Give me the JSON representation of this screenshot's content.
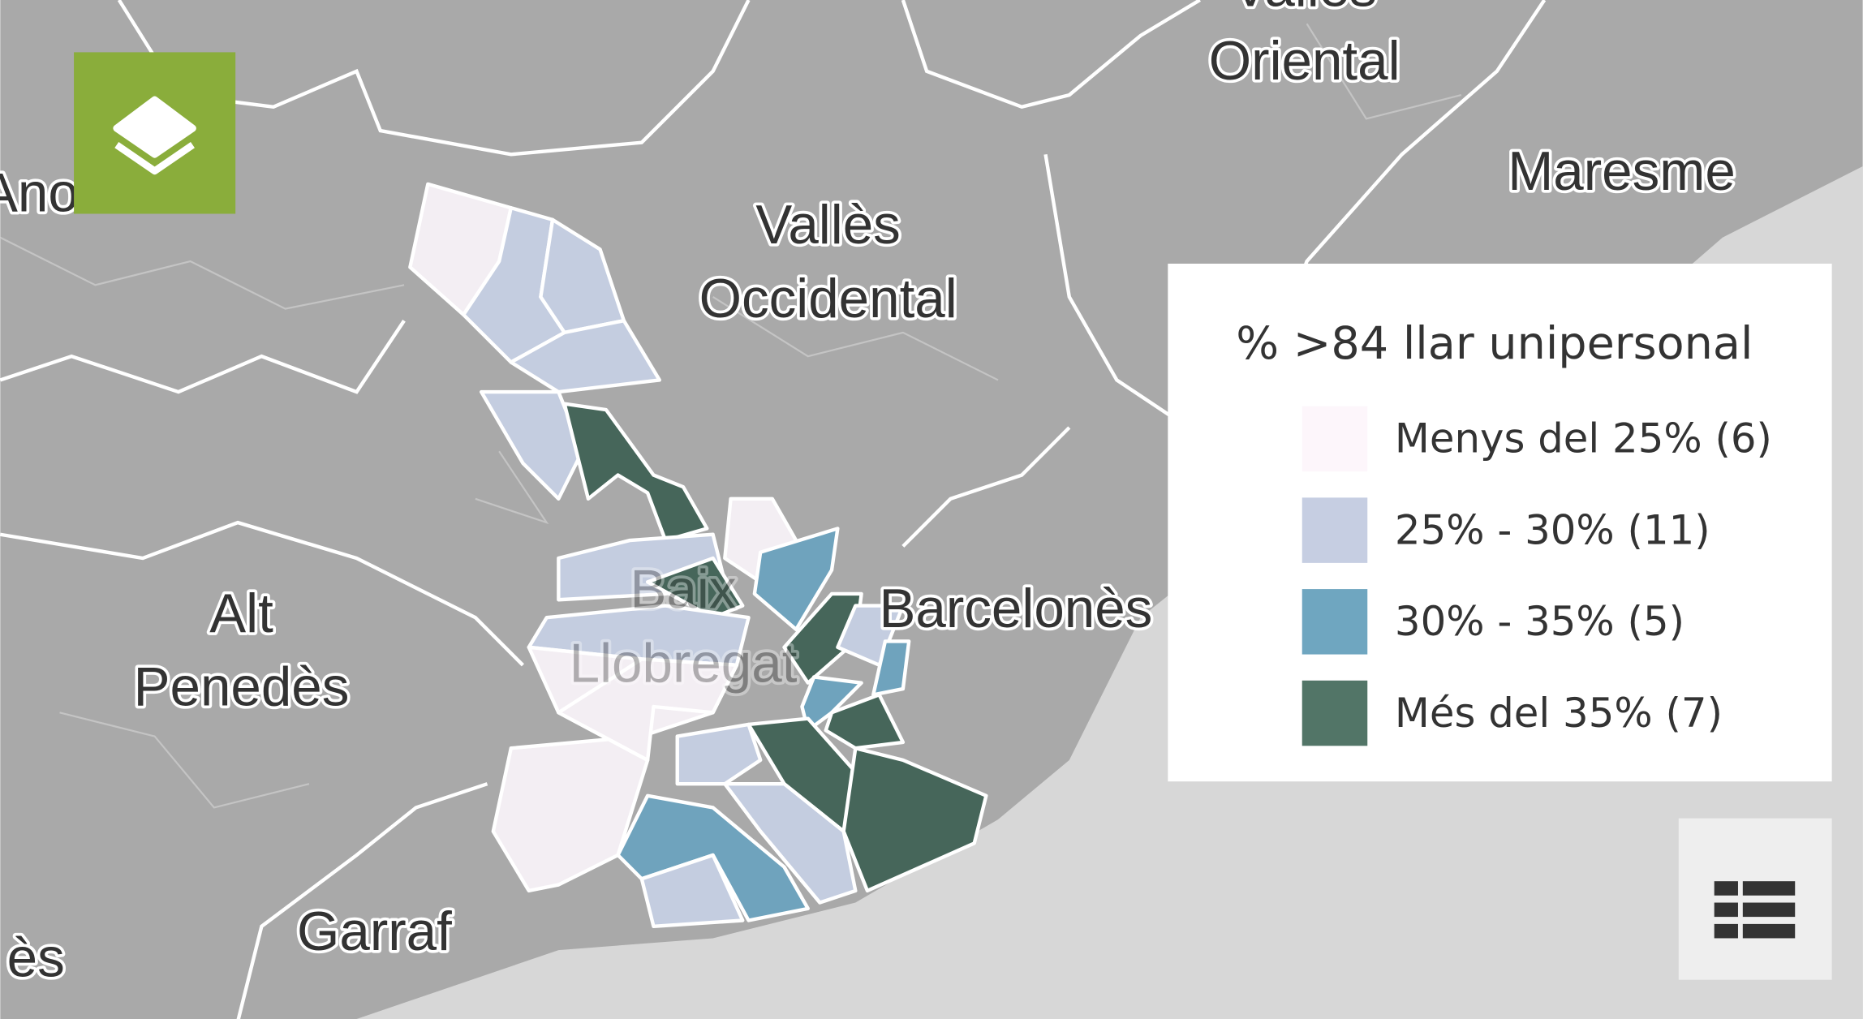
{
  "map": {
    "region_labels": [
      {
        "lines": [
          "Vallès",
          "Oriental"
        ]
      },
      {
        "lines": [
          "Maresme"
        ]
      },
      {
        "lines": [
          "Vallès",
          "Occidental"
        ]
      },
      {
        "lines": [
          "Alt",
          "Penedès"
        ]
      },
      {
        "lines": [
          "Baix",
          "Llobregat"
        ]
      },
      {
        "lines": [
          "Barcelonès"
        ]
      },
      {
        "lines": [
          "Garraf"
        ]
      },
      {
        "lines": [
          "Ano"
        ]
      },
      {
        "lines": [
          "ès"
        ]
      }
    ]
  },
  "legend": {
    "title": "% >84 llar unipersonal",
    "items": [
      {
        "label": "Menys del 25% (6)",
        "color": "#fdf6fb"
      },
      {
        "label": "25% - 30% (11)",
        "color": "#c6cee2"
      },
      {
        "label": "30% - 35% (5)",
        "color": "#6fa6c0"
      },
      {
        "label": "Més del 35% (7)",
        "color": "#527567"
      }
    ]
  }
}
